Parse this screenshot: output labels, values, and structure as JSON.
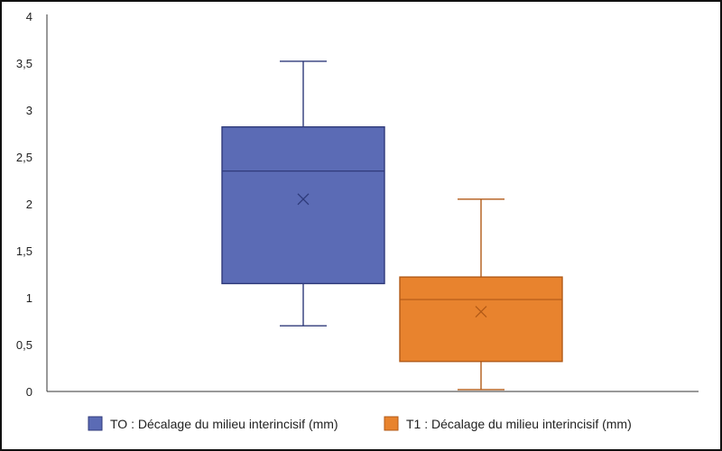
{
  "chart_data": {
    "type": "box",
    "title": "",
    "xlabel": "",
    "ylabel": "",
    "ylim": [
      0,
      4
    ],
    "yticks": [
      0,
      0.5,
      1,
      1.5,
      2,
      2.5,
      3,
      3.5,
      4
    ],
    "ytick_labels": [
      "0",
      "0,5",
      "1",
      "1,5",
      "2",
      "2,5",
      "3",
      "3,5",
      "4"
    ],
    "grid": false,
    "legend_position": "bottom",
    "series": [
      {
        "name": "TO : Décalage du milieu interincisif (mm)",
        "color": "#5b6bb5",
        "edge_color": "#2f3a7a",
        "min": 0.7,
        "q1": 1.15,
        "median": 2.35,
        "q3": 2.82,
        "max": 3.52,
        "mean": 2.05
      },
      {
        "name": "T1 : Décalage du milieu interincisif (mm)",
        "color": "#e8832e",
        "edge_color": "#b25a17",
        "min": 0.02,
        "q1": 0.32,
        "median": 0.98,
        "q3": 1.22,
        "max": 2.05,
        "mean": 0.85
      }
    ]
  }
}
